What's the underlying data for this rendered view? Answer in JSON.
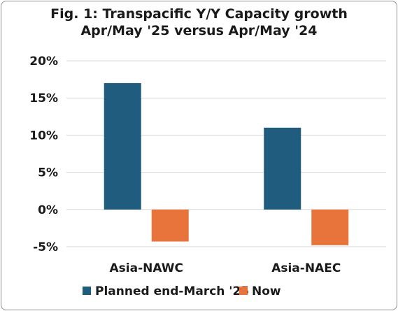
{
  "chart_data": {
    "type": "bar",
    "title_line1": "Fig. 1: Transpacific Y/Y Capacity growth",
    "title_line2": "Apr/May '25 versus Apr/May '24",
    "categories": [
      "Asia-NAWC",
      "Asia-NAEC"
    ],
    "series": [
      {
        "name": "Planned end-March '25",
        "color": "#1f5c7e",
        "values": [
          17,
          11
        ]
      },
      {
        "name": "Now",
        "color": "#e8743b",
        "values": [
          -4.3,
          -4.8
        ]
      }
    ],
    "ylim": [
      -5,
      20
    ],
    "yticks": [
      20,
      15,
      10,
      5,
      0,
      -5
    ],
    "ytick_labels": [
      "20%",
      "15%",
      "10%",
      "5%",
      "0%",
      "-5%"
    ],
    "grid": true,
    "legend": "bottom"
  }
}
